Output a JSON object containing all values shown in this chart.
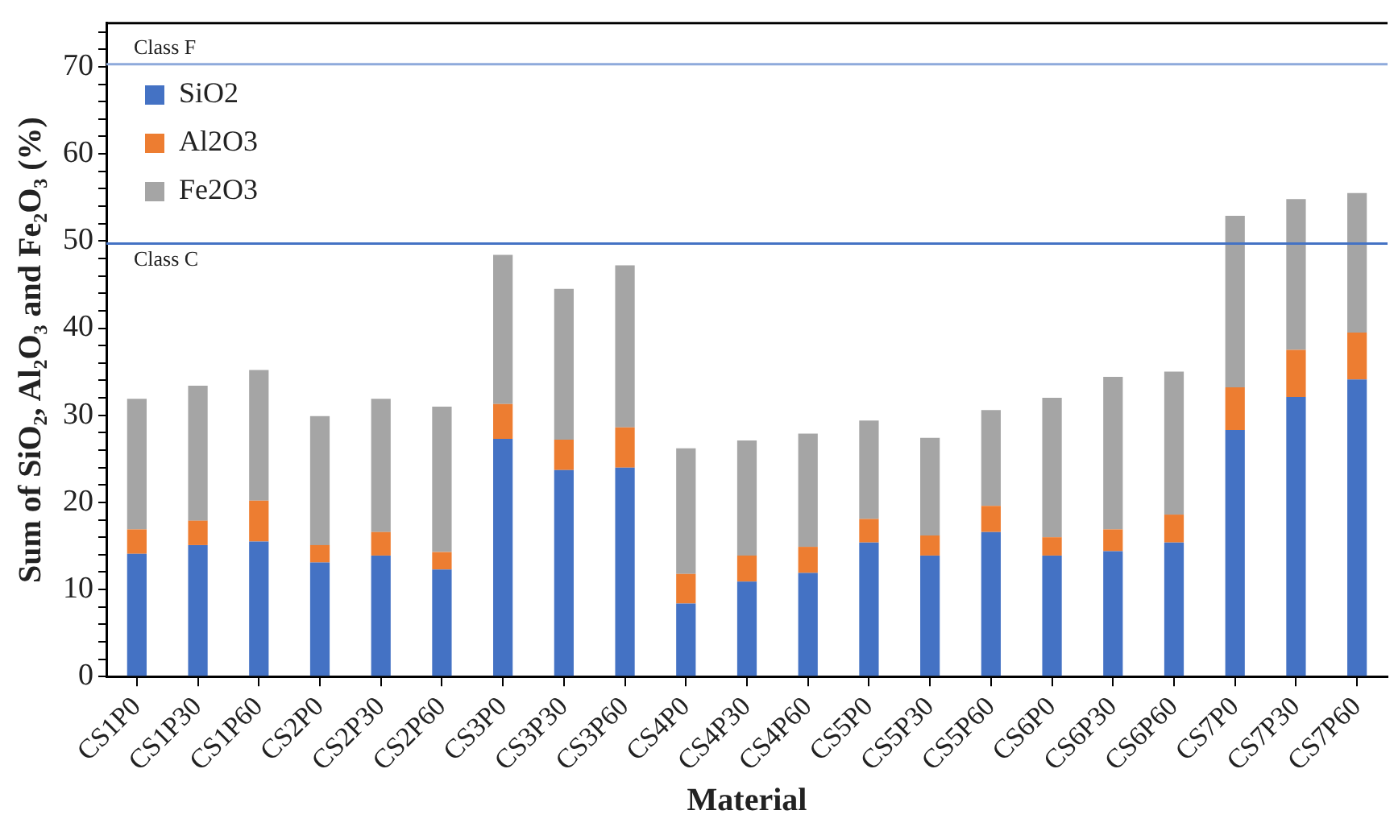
{
  "chart_data": {
    "type": "bar",
    "stacked": true,
    "xlabel": "Material",
    "ylabel": "Sum of SiO₂, Al₂O₃ and Fe₂O₃ (%)",
    "categories": [
      "CS1P0",
      "CS1P30",
      "CS1P60",
      "CS2P0",
      "CS2P30",
      "CS2P60",
      "CS3P0",
      "CS3P30",
      "CS3P60",
      "CS4P0",
      "CS4P30",
      "CS4P60",
      "CS5P0",
      "CS5P30",
      "CS5P60",
      "CS6P0",
      "CS6P30",
      "CS6P60",
      "CS7P0",
      "CS7P30",
      "CS7P60"
    ],
    "series": [
      {
        "name": "SiO2",
        "color": "#4472c4",
        "values": [
          14.1,
          15.1,
          15.5,
          13.1,
          13.9,
          12.3,
          27.3,
          23.7,
          24.0,
          8.4,
          10.9,
          11.9,
          15.4,
          13.9,
          16.6,
          13.9,
          14.4,
          15.4,
          28.3,
          32.1,
          34.1
        ]
      },
      {
        "name": "Al2O3",
        "color": "#ed7d31",
        "values": [
          2.8,
          2.8,
          4.7,
          2.0,
          2.7,
          2.0,
          4.0,
          3.5,
          4.6,
          3.4,
          3.0,
          3.0,
          2.7,
          2.3,
          3.0,
          2.1,
          2.5,
          3.2,
          4.9,
          5.4,
          5.4
        ]
      },
      {
        "name": "Fe2O3",
        "color": "#a5a5a5",
        "values": [
          15.0,
          15.5,
          15.0,
          14.8,
          15.3,
          16.7,
          17.1,
          17.3,
          18.6,
          14.4,
          13.2,
          13.0,
          11.3,
          11.2,
          11.0,
          16.0,
          17.5,
          16.4,
          19.7,
          17.3,
          16.0
        ]
      }
    ],
    "ylim": [
      0,
      75
    ],
    "yticks": [
      0,
      {
        "value": 2,
        "label": null
      },
      {
        "value": 4,
        "label": null
      },
      {
        "value": 6,
        "label": null
      },
      {
        "value": 8,
        "label": null
      },
      10,
      {
        "value": 12,
        "label": null
      },
      {
        "value": 14,
        "label": null
      },
      {
        "value": 16,
        "label": null
      },
      {
        "value": 18,
        "label": null
      },
      20,
      {
        "value": 22,
        "label": null
      },
      {
        "value": 24,
        "label": null
      },
      {
        "value": 26,
        "label": null
      },
      {
        "value": 28,
        "label": null
      },
      30,
      {
        "value": 32,
        "label": null
      },
      {
        "value": 34,
        "label": null
      },
      {
        "value": 36,
        "label": null
      },
      {
        "value": 38,
        "label": null
      },
      40,
      {
        "value": 42,
        "label": null
      },
      {
        "value": 44,
        "label": null
      },
      {
        "value": 46,
        "label": null
      },
      {
        "value": 48,
        "label": null
      },
      50,
      {
        "value": 52,
        "label": null
      },
      {
        "value": 54,
        "label": null
      },
      {
        "value": 56,
        "label": null
      },
      {
        "value": 58,
        "label": null
      },
      60,
      {
        "value": 62,
        "label": null
      },
      {
        "value": 64,
        "label": null
      },
      {
        "value": 66,
        "label": null
      },
      {
        "value": 68,
        "label": null
      },
      70,
      {
        "value": 72,
        "label": null
      },
      {
        "value": 74,
        "label": null
      }
    ],
    "ref_lines": [
      {
        "axis": "y",
        "value": 70.3,
        "label": "Class F",
        "color": "#8eaadb"
      },
      {
        "axis": "y",
        "value": 49.7,
        "label": "Class C",
        "color": "#4472c4"
      }
    ],
    "legend": "top left",
    "grid": false
  }
}
